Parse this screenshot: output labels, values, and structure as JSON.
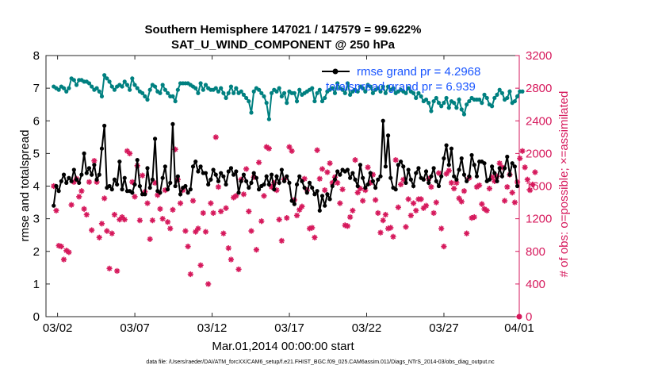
{
  "colors": {
    "rmse": "#000000",
    "totalspread": "#008080",
    "obs": "#d6195c",
    "legend_text": "#1a56ff"
  },
  "chart_data": {
    "type": "line",
    "title_line1": "Southern Hemisphere 147021 / 147579 = 99.622%",
    "title_line2": "SAT_U_WIND_COMPONENT @ 250 hPa",
    "xlabel": "Mar.01,2014 00:00:00 start",
    "ylabel_left": "rmse and totalspread",
    "ylabel_right": "# of obs: o=possible; ×=assimilated",
    "footnote": "data file: /Users/raeder/DAI/ATM_forcXX/CAM6_setup/f.e21.FHIST_BGC.f09_025.CAM6assim.011/Diags_NTrS_2014-03/obs_diag_output.nc",
    "xlim": [
      0.5,
      31.125
    ],
    "x_ticks": [
      1.25,
      6.25,
      11.25,
      16.25,
      21.25,
      26.25,
      31.25
    ],
    "x_tick_labels": [
      "03/02",
      "03/07",
      "03/12",
      "03/17",
      "03/22",
      "03/27",
      "04/01"
    ],
    "ylim_left": [
      0,
      8
    ],
    "y_ticks_left": [
      "0",
      "1",
      "2",
      "3",
      "4",
      "5",
      "6",
      "7",
      "8"
    ],
    "ylim_right": [
      0,
      3200
    ],
    "y_ticks_right": [
      "0",
      "400",
      "800",
      "1200",
      "1600",
      "2000",
      "2400",
      "2800",
      "3200"
    ],
    "legend": [
      {
        "label": "rmse grand pr = 4.2968",
        "series": "rmse"
      },
      {
        "label": "totalspread grand pr = 6.939",
        "series": "totalspread"
      }
    ],
    "series": [
      {
        "name": "rmse",
        "values": [
          3.4,
          4.0,
          3.85,
          4.15,
          4.35,
          4.1,
          4.25,
          4.15,
          4.5,
          4.2,
          4.1,
          4.35,
          5.0,
          4.4,
          4.55,
          4.35,
          4.65,
          4.2,
          4.35,
          5.15,
          5.85,
          3.95,
          4.0,
          3.9,
          4.2,
          4.05,
          4.75,
          3.9,
          4.25,
          3.85,
          3.85,
          3.8,
          4.05,
          4.8,
          4.0,
          3.75,
          3.75,
          4.55,
          3.95,
          4.2,
          5.45,
          3.85,
          3.8,
          4.25,
          4.6,
          3.9,
          4.1,
          5.9,
          4.0,
          4.3,
          3.75,
          3.95,
          4.0,
          3.8,
          3.9,
          4.6,
          4.75,
          4.45,
          4.6,
          4.4,
          4.4,
          4.05,
          4.2,
          4.5,
          4.35,
          4.15,
          4.4,
          4.3,
          4.05,
          4.45,
          4.55,
          4.35,
          4.45,
          3.8,
          4.15,
          4.35,
          4.15,
          3.95,
          4.1,
          4.4,
          4.25,
          3.9,
          4.0,
          4.05,
          4.3,
          4.05,
          4.35,
          3.9,
          4.3,
          4.1,
          4.5,
          4.15,
          4.3,
          4.1,
          3.55,
          3.45,
          4.05,
          4.3,
          4.15,
          3.95,
          3.8,
          4.1,
          3.95,
          3.75,
          3.85,
          3.25,
          3.7,
          3.4,
          3.75,
          3.6,
          4.0,
          4.2,
          4.45,
          4.35,
          4.5,
          4.45,
          4.5,
          4.25,
          4.4,
          4.2,
          4.0,
          4.65,
          4.25,
          3.95,
          4.05,
          4.4,
          4.15,
          3.95,
          4.2,
          4.3,
          6.0,
          4.6,
          5.55,
          4.25,
          3.95,
          3.9,
          4.65,
          4.75,
          4.6,
          4.1,
          4.5,
          4.2,
          4.0,
          4.4,
          4.55,
          4.25,
          4.2,
          4.45,
          4.1,
          4.3,
          4.55,
          4.15,
          4.0,
          4.3,
          4.85,
          5.25,
          4.65,
          5.15,
          4.3,
          4.2,
          4.5,
          4.85,
          4.35,
          4.15,
          4.3,
          4.95,
          4.65,
          4.3,
          4.75,
          4.75,
          4.7,
          4.15,
          4.2,
          4.6,
          4.4,
          4.15,
          4.55,
          4.3,
          4.55,
          4.9,
          4.35,
          4.7,
          4.6,
          4.0
        ]
      },
      {
        "name": "totalspread",
        "values": [
          7.05,
          7.0,
          6.95,
          7.05,
          7.0,
          6.9,
          7.0,
          7.3,
          7.25,
          7.1,
          7.25,
          7.25,
          7.2,
          7.2,
          7.15,
          7.05,
          6.95,
          7.0,
          6.9,
          6.75,
          7.4,
          7.3,
          7.2,
          7.05,
          6.95,
          7.05,
          7.1,
          7.05,
          7.2,
          7.1,
          6.95,
          7.3,
          7.1,
          7.0,
          6.9,
          6.85,
          6.75,
          6.65,
          6.95,
          7.1,
          7.05,
          6.9,
          6.85,
          7.1,
          6.95,
          6.85,
          6.75,
          6.75,
          6.6,
          6.95,
          7.15,
          7.15,
          7.15,
          7.15,
          7.1,
          7.05,
          7.0,
          6.85,
          7.15,
          6.95,
          7.1,
          7.0,
          6.95,
          6.95,
          7.0,
          6.9,
          7.0,
          6.85,
          6.7,
          6.85,
          7.05,
          6.85,
          7.0,
          6.85,
          6.9,
          6.8,
          6.7,
          6.6,
          6.25,
          6.9,
          7.0,
          6.95,
          6.85,
          6.75,
          6.55,
          6.05,
          6.85,
          6.95,
          6.9,
          7.0,
          6.75,
          6.85,
          6.55,
          6.9,
          6.85,
          6.85,
          6.6,
          6.95,
          6.8,
          6.85,
          6.9,
          6.95,
          7.0,
          6.6,
          6.85,
          6.95,
          6.6,
          6.7,
          6.9,
          6.95,
          7.0,
          6.85,
          7.15,
          7.0,
          6.95,
          6.85,
          7.15,
          6.8,
          6.9,
          6.95,
          6.9,
          7.05,
          7.0,
          6.9,
          7.1,
          7.05,
          6.85,
          6.95,
          7.0,
          6.9,
          7.05,
          6.85,
          7.05,
          6.95,
          7.0,
          6.85,
          6.9,
          6.95,
          6.9,
          6.85,
          7.0,
          6.9,
          6.85,
          6.7,
          6.85,
          6.75,
          6.6,
          6.65,
          6.55,
          6.3,
          6.6,
          6.7,
          6.55,
          6.45,
          6.55,
          6.7,
          6.4,
          6.6,
          6.55,
          6.4,
          6.65,
          6.35,
          6.2,
          6.5,
          6.6,
          6.7,
          6.65,
          6.65,
          6.65,
          6.55,
          6.8,
          6.7,
          6.5,
          6.45,
          6.7,
          6.8,
          6.95,
          6.85,
          6.65,
          6.7,
          6.9,
          6.55,
          6.6,
          6.75,
          6.9,
          6.9
        ]
      },
      {
        "name": "obs_assimilated",
        "values": [
          1600,
          1300,
          870,
          860,
          700,
          810,
          790,
          1370,
          1650,
          1690,
          1470,
          1540,
          1320,
          1250,
          1650,
          1060,
          1910,
          1650,
          970,
          1140,
          1450,
          1050,
          590,
          1020,
          1250,
          560,
          1190,
          1220,
          1190,
          2030,
          2000,
          1650,
          1470,
          1850,
          1180,
          1730,
          1530,
          1390,
          950,
          1180,
          1640,
          1490,
          1320,
          1200,
          1550,
          1160,
          1080,
          1310,
          2050,
          1680,
          1390,
          1550,
          1050,
          860,
          520,
          1420,
          1040,
          1080,
          630,
          1270,
          1040,
          400,
          1390,
          1270,
          2200,
          1590,
          1290,
          1020,
          1330,
          840,
          700,
          1460,
          1480,
          580,
          1680,
          1500,
          1810,
          1290,
          1050,
          1710,
          820,
          1890,
          1170,
          1480,
          2080,
          2060,
          1590,
          1640,
          1550,
          1190,
          930,
          1680,
          1210,
          2080,
          2030,
          1430,
          1240,
          1310,
          1350,
          1690,
          1550,
          1080,
          1090,
          970,
          2040,
          1690,
          1810,
          1550,
          1770,
          1880,
          1640,
          1710,
          1640,
          1390,
          1560,
          1120,
          1110,
          1220,
          1300,
          1920,
          1520,
          1570,
          1420,
          1550,
          1830,
          1640,
          1740,
          1430,
          1270,
          1030,
          1180,
          1250,
          1080,
          1090,
          980,
          1920,
          1340,
          1620,
          1680,
          1100,
          1440,
          1240,
          1390,
          1300,
          1440,
          1440,
          1330,
          1360,
          1690,
          1590,
          1270,
          1400,
          1760,
          1080,
          860,
          1750,
          1790,
          1640,
          1570,
          1640,
          1450,
          1410,
          1540,
          1020,
          1700,
          1210,
          1220,
          1590,
          1610,
          1380,
          1320,
          1300,
          1570,
          1710,
          1660,
          1720,
          1880,
          1830,
          1420,
          1590,
          1740,
          1520,
          1400,
          1650,
          1940,
          2030,
          1830,
          1680,
          1550,
          1620,
          1770
        ]
      }
    ]
  }
}
